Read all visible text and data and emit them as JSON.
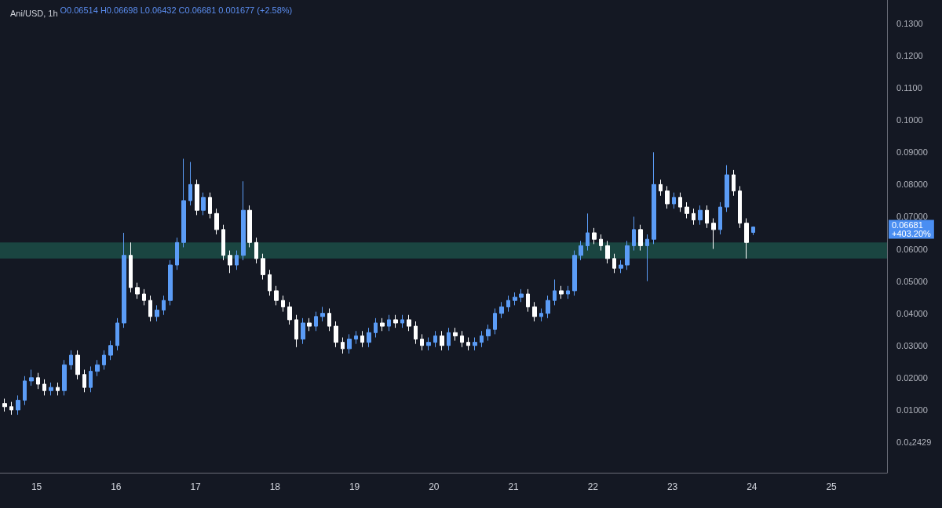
{
  "chart_data": {
    "type": "candlestick",
    "title": "Ani/USD, 1h",
    "subtitle": "O0.06514 H0.06698 L0.06432 C0.06681 0.001677 (+2.58%)",
    "x": [
      14.6,
      14.683,
      14.767,
      14.85,
      14.933,
      15.017,
      15.1,
      15.183,
      15.267,
      15.35,
      15.433,
      15.517,
      15.6,
      15.683,
      15.767,
      15.85,
      15.933,
      16.017,
      16.1,
      16.183,
      16.267,
      16.35,
      16.433,
      16.517,
      16.6,
      16.683,
      16.767,
      16.85,
      16.933,
      17.017,
      17.1,
      17.183,
      17.267,
      17.35,
      17.433,
      17.517,
      17.6,
      17.683,
      17.767,
      17.85,
      17.933,
      18.017,
      18.1,
      18.183,
      18.267,
      18.35,
      18.433,
      18.517,
      18.6,
      18.683,
      18.767,
      18.85,
      18.933,
      19.017,
      19.1,
      19.183,
      19.267,
      19.35,
      19.433,
      19.517,
      19.6,
      19.683,
      19.767,
      19.85,
      19.933,
      20.017,
      20.1,
      20.183,
      20.267,
      20.35,
      20.433,
      20.517,
      20.6,
      20.683,
      20.767,
      20.85,
      20.933,
      21.017,
      21.1,
      21.183,
      21.267,
      21.35,
      21.433,
      21.517,
      21.6,
      21.683,
      21.767,
      21.85,
      21.933,
      22.017,
      22.1,
      22.183,
      22.267,
      22.35,
      22.433,
      22.517,
      22.6,
      22.683,
      22.767,
      22.85,
      22.933,
      23.017,
      23.1,
      23.183,
      23.267,
      23.35,
      23.433,
      23.517,
      23.6,
      23.683,
      23.767,
      23.85,
      23.933,
      24.017
    ],
    "ohlc": [
      [
        0.012,
        0.0135,
        0.0095,
        0.011
      ],
      [
        0.011,
        0.0125,
        0.0085,
        0.01
      ],
      [
        0.01,
        0.0145,
        0.0085,
        0.013
      ],
      [
        0.013,
        0.0205,
        0.0115,
        0.019
      ],
      [
        0.019,
        0.0225,
        0.0175,
        0.02
      ],
      [
        0.02,
        0.0215,
        0.0165,
        0.018
      ],
      [
        0.018,
        0.0195,
        0.0145,
        0.016
      ],
      [
        0.016,
        0.0185,
        0.0145,
        0.017
      ],
      [
        0.017,
        0.0185,
        0.0145,
        0.016
      ],
      [
        0.016,
        0.0255,
        0.0145,
        0.024
      ],
      [
        0.024,
        0.0285,
        0.0225,
        0.027
      ],
      [
        0.027,
        0.0285,
        0.0195,
        0.021
      ],
      [
        0.021,
        0.0225,
        0.0155,
        0.017
      ],
      [
        0.017,
        0.0235,
        0.0155,
        0.022
      ],
      [
        0.022,
        0.0255,
        0.0205,
        0.024
      ],
      [
        0.024,
        0.0285,
        0.0225,
        0.027
      ],
      [
        0.027,
        0.0315,
        0.0255,
        0.03
      ],
      [
        0.03,
        0.0385,
        0.0285,
        0.037
      ],
      [
        0.037,
        0.065,
        0.0355,
        0.058
      ],
      [
        0.058,
        0.062,
        0.0465,
        0.048
      ],
      [
        0.048,
        0.0495,
        0.0445,
        0.046
      ],
      [
        0.046,
        0.0475,
        0.0425,
        0.044
      ],
      [
        0.044,
        0.0455,
        0.0375,
        0.039
      ],
      [
        0.039,
        0.0425,
        0.0375,
        0.041
      ],
      [
        0.041,
        0.0455,
        0.0395,
        0.044
      ],
      [
        0.044,
        0.0565,
        0.0425,
        0.055
      ],
      [
        0.055,
        0.0635,
        0.0535,
        0.062
      ],
      [
        0.062,
        0.088,
        0.0605,
        0.075
      ],
      [
        0.075,
        0.087,
        0.0735,
        0.08
      ],
      [
        0.08,
        0.0815,
        0.0705,
        0.072
      ],
      [
        0.072,
        0.0775,
        0.0705,
        0.076
      ],
      [
        0.076,
        0.0775,
        0.0695,
        0.071
      ],
      [
        0.071,
        0.0725,
        0.0645,
        0.066
      ],
      [
        0.066,
        0.0675,
        0.0565,
        0.058
      ],
      [
        0.058,
        0.0595,
        0.0525,
        0.055
      ],
      [
        0.055,
        0.0595,
        0.0535,
        0.058
      ],
      [
        0.058,
        0.081,
        0.0565,
        0.072
      ],
      [
        0.072,
        0.0735,
        0.0605,
        0.062
      ],
      [
        0.062,
        0.0635,
        0.0555,
        0.057
      ],
      [
        0.057,
        0.0585,
        0.0505,
        0.052
      ],
      [
        0.052,
        0.0535,
        0.0455,
        0.047
      ],
      [
        0.047,
        0.0485,
        0.0425,
        0.044
      ],
      [
        0.044,
        0.0455,
        0.0405,
        0.042
      ],
      [
        0.042,
        0.0435,
        0.0365,
        0.038
      ],
      [
        0.038,
        0.0395,
        0.0295,
        0.032
      ],
      [
        0.032,
        0.0385,
        0.0305,
        0.037
      ],
      [
        0.037,
        0.0385,
        0.0345,
        0.036
      ],
      [
        0.036,
        0.0405,
        0.0345,
        0.039
      ],
      [
        0.039,
        0.042,
        0.0375,
        0.04
      ],
      [
        0.04,
        0.0415,
        0.0345,
        0.036
      ],
      [
        0.036,
        0.0375,
        0.0295,
        0.031
      ],
      [
        0.031,
        0.0325,
        0.0275,
        0.029
      ],
      [
        0.029,
        0.0335,
        0.0275,
        0.032
      ],
      [
        0.032,
        0.0345,
        0.0305,
        0.033
      ],
      [
        0.033,
        0.0345,
        0.0295,
        0.031
      ],
      [
        0.031,
        0.0355,
        0.0295,
        0.034
      ],
      [
        0.034,
        0.0385,
        0.0325,
        0.037
      ],
      [
        0.037,
        0.0385,
        0.0345,
        0.036
      ],
      [
        0.036,
        0.0395,
        0.0345,
        0.038
      ],
      [
        0.038,
        0.0395,
        0.0355,
        0.037
      ],
      [
        0.037,
        0.0395,
        0.0355,
        0.038
      ],
      [
        0.038,
        0.0395,
        0.0345,
        0.036
      ],
      [
        0.036,
        0.0375,
        0.0305,
        0.032
      ],
      [
        0.032,
        0.0335,
        0.0285,
        0.03
      ],
      [
        0.03,
        0.0325,
        0.0285,
        0.031
      ],
      [
        0.031,
        0.0345,
        0.0295,
        0.033
      ],
      [
        0.033,
        0.0345,
        0.0285,
        0.03
      ],
      [
        0.03,
        0.0355,
        0.0285,
        0.034
      ],
      [
        0.034,
        0.0355,
        0.0315,
        0.033
      ],
      [
        0.033,
        0.0345,
        0.0295,
        0.031
      ],
      [
        0.031,
        0.0325,
        0.0285,
        0.03
      ],
      [
        0.03,
        0.0325,
        0.0285,
        0.031
      ],
      [
        0.031,
        0.0345,
        0.0295,
        0.033
      ],
      [
        0.033,
        0.0365,
        0.0315,
        0.035
      ],
      [
        0.035,
        0.0415,
        0.0335,
        0.04
      ],
      [
        0.04,
        0.0435,
        0.0385,
        0.042
      ],
      [
        0.042,
        0.0455,
        0.0405,
        0.044
      ],
      [
        0.044,
        0.0465,
        0.0425,
        0.045
      ],
      [
        0.045,
        0.0475,
        0.0435,
        0.046
      ],
      [
        0.046,
        0.0475,
        0.0405,
        0.042
      ],
      [
        0.042,
        0.0435,
        0.0375,
        0.039
      ],
      [
        0.039,
        0.0415,
        0.0375,
        0.04
      ],
      [
        0.04,
        0.0455,
        0.0385,
        0.044
      ],
      [
        0.044,
        0.0505,
        0.0425,
        0.047
      ],
      [
        0.047,
        0.0485,
        0.0445,
        0.046
      ],
      [
        0.046,
        0.0485,
        0.0445,
        0.047
      ],
      [
        0.047,
        0.0595,
        0.0455,
        0.058
      ],
      [
        0.058,
        0.0625,
        0.0565,
        0.061
      ],
      [
        0.061,
        0.071,
        0.0595,
        0.065
      ],
      [
        0.065,
        0.0665,
        0.0615,
        0.063
      ],
      [
        0.063,
        0.0645,
        0.0595,
        0.061
      ],
      [
        0.061,
        0.0625,
        0.0555,
        0.057
      ],
      [
        0.057,
        0.0585,
        0.0525,
        0.054
      ],
      [
        0.054,
        0.0565,
        0.0525,
        0.055
      ],
      [
        0.055,
        0.0625,
        0.0535,
        0.061
      ],
      [
        0.061,
        0.07,
        0.0595,
        0.066
      ],
      [
        0.066,
        0.0675,
        0.0595,
        0.061
      ],
      [
        0.061,
        0.0645,
        0.05,
        0.063
      ],
      [
        0.063,
        0.09,
        0.0615,
        0.08
      ],
      [
        0.08,
        0.0815,
        0.0765,
        0.078
      ],
      [
        0.078,
        0.0795,
        0.0725,
        0.074
      ],
      [
        0.074,
        0.0775,
        0.0725,
        0.076
      ],
      [
        0.076,
        0.0775,
        0.0715,
        0.073
      ],
      [
        0.073,
        0.0745,
        0.0695,
        0.071
      ],
      [
        0.071,
        0.0725,
        0.0675,
        0.069
      ],
      [
        0.069,
        0.0735,
        0.0675,
        0.072
      ],
      [
        0.072,
        0.0735,
        0.0665,
        0.068
      ],
      [
        0.068,
        0.0695,
        0.06,
        0.066
      ],
      [
        0.066,
        0.0745,
        0.0645,
        0.073
      ],
      [
        0.073,
        0.086,
        0.0715,
        0.083
      ],
      [
        0.083,
        0.0845,
        0.0765,
        0.078
      ],
      [
        0.078,
        0.0795,
        0.0665,
        0.068
      ],
      [
        0.068,
        0.0695,
        0.057,
        0.062
      ],
      [
        0.06514,
        0.06698,
        0.06432,
        0.06681
      ]
    ],
    "colors": [
      "#ffffff",
      "#ffffff",
      "#5b9cf6",
      "#5b9cf6",
      "#5b9cf6",
      "#ffffff",
      "#ffffff",
      "#5b9cf6",
      "#ffffff",
      "#5b9cf6",
      "#5b9cf6",
      "#ffffff",
      "#ffffff",
      "#5b9cf6",
      "#5b9cf6",
      "#5b9cf6",
      "#5b9cf6",
      "#5b9cf6",
      "#5b9cf6",
      "#ffffff",
      "#ffffff",
      "#ffffff",
      "#ffffff",
      "#5b9cf6",
      "#5b9cf6",
      "#5b9cf6",
      "#5b9cf6",
      "#5b9cf6",
      "#5b9cf6",
      "#ffffff",
      "#5b9cf6",
      "#ffffff",
      "#ffffff",
      "#ffffff",
      "#ffffff",
      "#5b9cf6",
      "#5b9cf6",
      "#ffffff",
      "#ffffff",
      "#ffffff",
      "#ffffff",
      "#ffffff",
      "#ffffff",
      "#ffffff",
      "#ffffff",
      "#5b9cf6",
      "#ffffff",
      "#5b9cf6",
      "#5b9cf6",
      "#ffffff",
      "#ffffff",
      "#ffffff",
      "#5b9cf6",
      "#5b9cf6",
      "#ffffff",
      "#5b9cf6",
      "#5b9cf6",
      "#ffffff",
      "#5b9cf6",
      "#ffffff",
      "#5b9cf6",
      "#ffffff",
      "#ffffff",
      "#ffffff",
      "#5b9cf6",
      "#5b9cf6",
      "#ffffff",
      "#5b9cf6",
      "#ffffff",
      "#ffffff",
      "#ffffff",
      "#5b9cf6",
      "#5b9cf6",
      "#5b9cf6",
      "#5b9cf6",
      "#5b9cf6",
      "#5b9cf6",
      "#5b9cf6",
      "#5b9cf6",
      "#ffffff",
      "#ffffff",
      "#5b9cf6",
      "#5b9cf6",
      "#5b9cf6",
      "#ffffff",
      "#5b9cf6",
      "#5b9cf6",
      "#5b9cf6",
      "#5b9cf6",
      "#ffffff",
      "#ffffff",
      "#ffffff",
      "#ffffff",
      "#5b9cf6",
      "#5b9cf6",
      "#5b9cf6",
      "#ffffff",
      "#5b9cf6",
      "#5b9cf6",
      "#ffffff",
      "#ffffff",
      "#5b9cf6",
      "#ffffff",
      "#ffffff",
      "#ffffff",
      "#5b9cf6",
      "#ffffff",
      "#ffffff",
      "#5b9cf6",
      "#5b9cf6",
      "#ffffff",
      "#ffffff",
      "#ffffff",
      "#5b9cf6"
    ],
    "xlim": [
      14.54,
      25.7
    ],
    "xticks": [
      15,
      16,
      17,
      18,
      19,
      20,
      21,
      22,
      23,
      24,
      25
    ],
    "ylim": [
      -0.0095,
      0.1373
    ],
    "yticks": [
      {
        "value": 2.429e-05,
        "label": "0.0₄2429"
      },
      {
        "value": 0.01,
        "label": "0.01000"
      },
      {
        "value": 0.02,
        "label": "0.02000"
      },
      {
        "value": 0.03,
        "label": "0.03000"
      },
      {
        "value": 0.04,
        "label": "0.04000"
      },
      {
        "value": 0.05,
        "label": "0.05000"
      },
      {
        "value": 0.06,
        "label": "0.06000"
      },
      {
        "value": 0.07,
        "label": "0.07000"
      },
      {
        "value": 0.08,
        "label": "0.08000"
      },
      {
        "value": 0.09,
        "label": "0.09000"
      },
      {
        "value": 0.1,
        "label": "0.1000"
      },
      {
        "value": 0.11,
        "label": "0.1100"
      },
      {
        "value": 0.12,
        "label": "0.1200"
      },
      {
        "value": 0.13,
        "label": "0.1300"
      }
    ],
    "bands": [
      {
        "axis": "y",
        "from": 0.057,
        "to": 0.062,
        "color": "#1b4a45"
      }
    ],
    "annotations": [
      "0.06681\n+403.20%"
    ],
    "grid": false
  }
}
